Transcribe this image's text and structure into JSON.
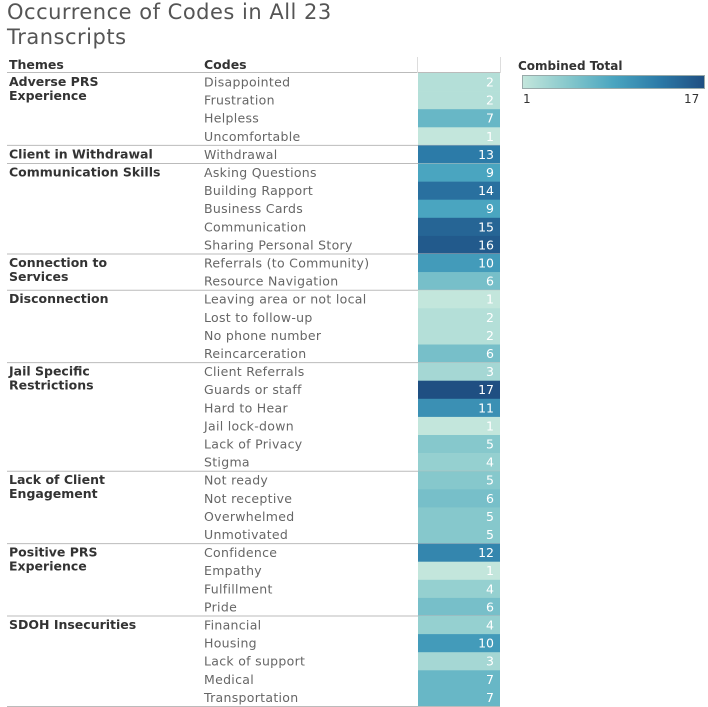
{
  "title": "Occurrence of Codes in All 23 Transcripts",
  "chart_data": {
    "type": "heatmap",
    "title": "Occurrence of Codes in All 23 Transcripts",
    "columns": {
      "themes": "Themes",
      "codes": "Codes"
    },
    "legend": {
      "title": "Combined Total",
      "min": 1,
      "max": 17,
      "min_color": "#c3e6dc",
      "max_color": "#1f4f82"
    },
    "themes": [
      {
        "name": "Adverse PRS Experience",
        "rows": [
          {
            "code": "Disappointed",
            "value": 2
          },
          {
            "code": "Frustration",
            "value": 2
          },
          {
            "code": "Helpless",
            "value": 7
          },
          {
            "code": "Uncomfortable",
            "value": 1
          }
        ]
      },
      {
        "name": "Client in Withdrawal",
        "rows": [
          {
            "code": "Withdrawal",
            "value": 13
          }
        ]
      },
      {
        "name": "Communication Skills",
        "rows": [
          {
            "code": "Asking Questions",
            "value": 9
          },
          {
            "code": "Building Rapport",
            "value": 14
          },
          {
            "code": "Business Cards",
            "value": 9
          },
          {
            "code": "Communication",
            "value": 15
          },
          {
            "code": "Sharing Personal Story",
            "value": 16
          }
        ]
      },
      {
        "name": "Connection to Services",
        "rows": [
          {
            "code": "Referrals (to Community)",
            "value": 10
          },
          {
            "code": "Resource Navigation",
            "value": 6
          }
        ]
      },
      {
        "name": "Disconnection",
        "rows": [
          {
            "code": "Leaving area or not local",
            "value": 1
          },
          {
            "code": "Lost to follow-up",
            "value": 2
          },
          {
            "code": "No phone number",
            "value": 2
          },
          {
            "code": "Reincarceration",
            "value": 6
          }
        ]
      },
      {
        "name": "Jail Specific Restrictions",
        "rows": [
          {
            "code": "Client Referrals",
            "value": 3
          },
          {
            "code": "Guards or staff",
            "value": 17
          },
          {
            "code": "Hard to Hear",
            "value": 11
          },
          {
            "code": "Jail lock-down",
            "value": 1
          },
          {
            "code": "Lack of Privacy",
            "value": 5
          },
          {
            "code": "Stigma",
            "value": 4
          }
        ]
      },
      {
        "name": "Lack of Client Engagement",
        "rows": [
          {
            "code": "Not ready",
            "value": 5
          },
          {
            "code": "Not receptive",
            "value": 6
          },
          {
            "code": "Overwhelmed",
            "value": 5
          },
          {
            "code": "Unmotivated",
            "value": 5
          }
        ]
      },
      {
        "name": "Positive PRS Experience",
        "rows": [
          {
            "code": "Confidence",
            "value": 12
          },
          {
            "code": "Empathy",
            "value": 1
          },
          {
            "code": "Fulfillment",
            "value": 4
          },
          {
            "code": "Pride",
            "value": 6
          }
        ]
      },
      {
        "name": "SDOH Insecurities",
        "rows": [
          {
            "code": "Financial",
            "value": 4
          },
          {
            "code": "Housing",
            "value": 10
          },
          {
            "code": "Lack of support",
            "value": 3
          },
          {
            "code": "Medical",
            "value": 7
          },
          {
            "code": "Transportation",
            "value": 7
          }
        ]
      }
    ]
  }
}
